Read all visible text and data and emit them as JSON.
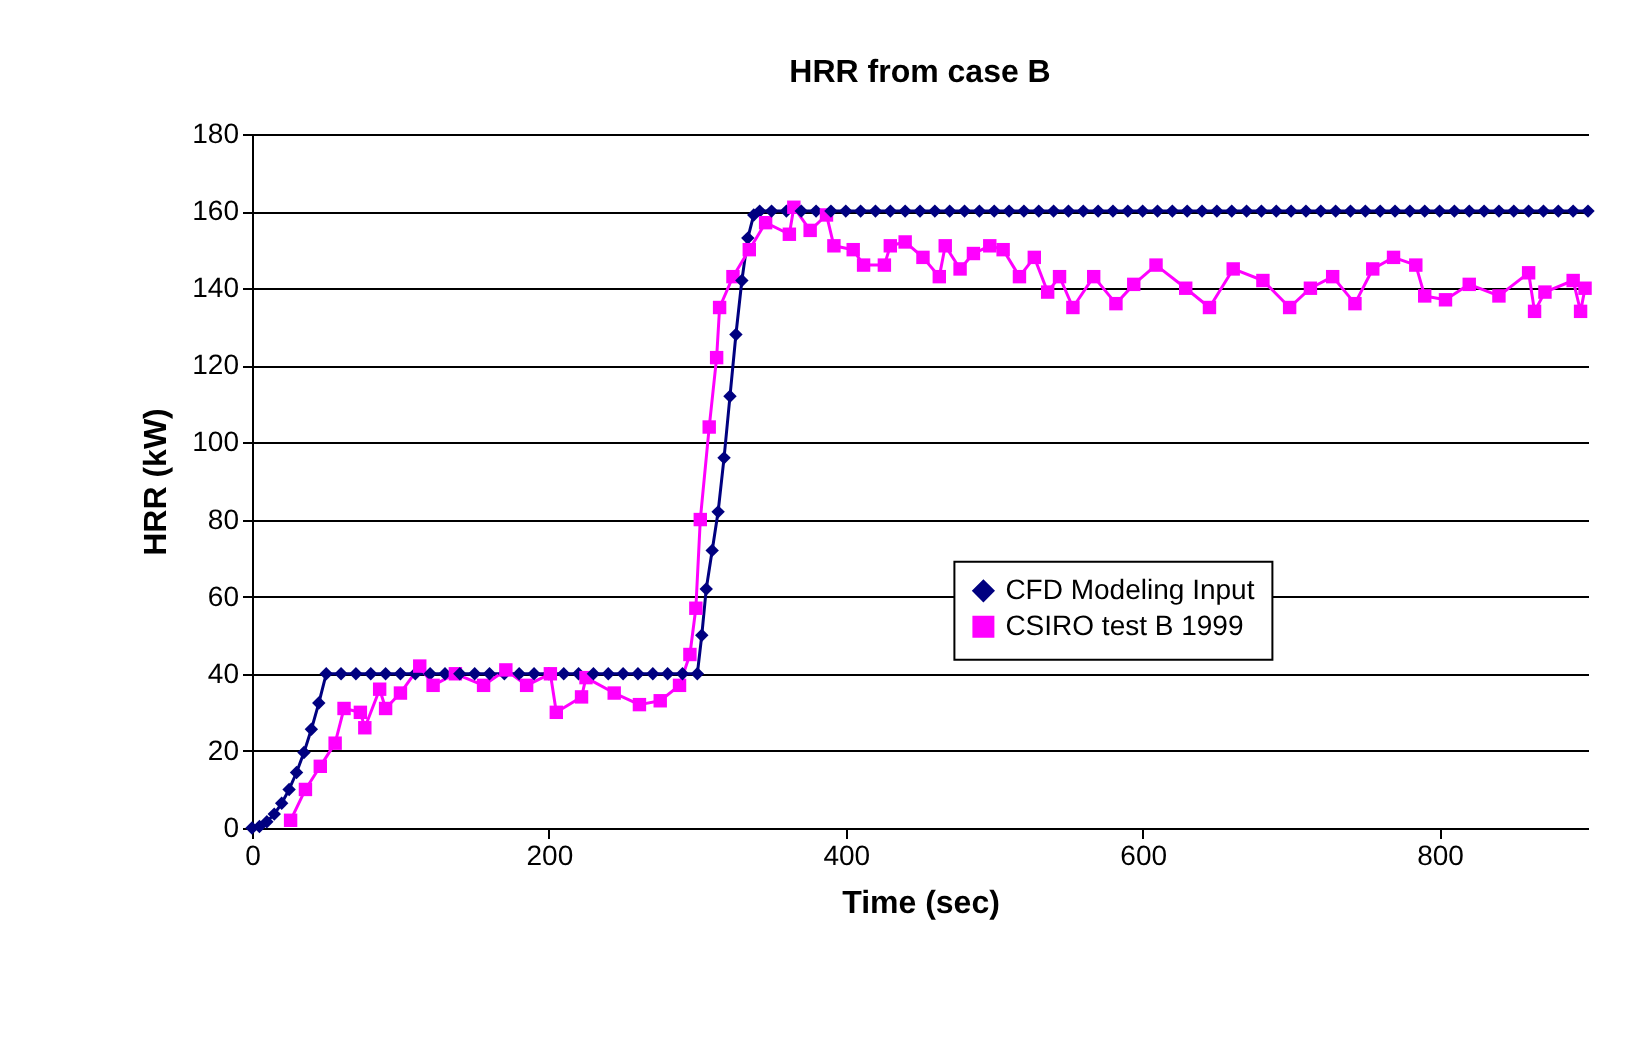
{
  "chart_data": {
    "type": "line",
    "title": "HRR from case B",
    "xlabel": "Time (sec)",
    "ylabel": "HRR (kW)",
    "xlim": [
      0,
      900
    ],
    "xticks": [
      0,
      200,
      400,
      600,
      800
    ],
    "ylim": [
      0,
      180
    ],
    "yticks": [
      0,
      20,
      40,
      60,
      80,
      100,
      120,
      140,
      160,
      180
    ],
    "grid": "y",
    "legend": "right",
    "series": [
      {
        "name": "CFD Modeling Input",
        "color": "#000080",
        "marker": "diamond",
        "x": [
          0,
          5,
          10,
          15,
          20,
          25,
          30,
          35,
          40,
          45,
          50,
          60,
          70,
          80,
          90,
          100,
          110,
          120,
          130,
          140,
          150,
          160,
          170,
          180,
          190,
          200,
          210,
          220,
          230,
          240,
          250,
          260,
          270,
          280,
          290,
          300,
          303,
          306,
          310,
          314,
          318,
          322,
          326,
          330,
          334,
          338,
          342,
          350,
          360,
          370,
          380,
          390,
          400,
          410,
          420,
          430,
          440,
          450,
          460,
          470,
          480,
          490,
          500,
          510,
          520,
          530,
          540,
          550,
          560,
          570,
          580,
          590,
          600,
          610,
          620,
          630,
          640,
          650,
          660,
          670,
          680,
          690,
          700,
          710,
          720,
          730,
          740,
          750,
          760,
          770,
          780,
          790,
          800,
          810,
          820,
          830,
          840,
          850,
          860,
          870,
          880,
          890,
          900
        ],
        "values": [
          0,
          0.4,
          1.6,
          3.6,
          6.4,
          10,
          14.4,
          19.6,
          25.6,
          32.4,
          40,
          40,
          40,
          40,
          40,
          40,
          40,
          40,
          40,
          40,
          40,
          40,
          40,
          40,
          40,
          40,
          40,
          40,
          40,
          40,
          40,
          40,
          40,
          40,
          40,
          40,
          50,
          62,
          72,
          82,
          96,
          112,
          128,
          142,
          153,
          159,
          160,
          160,
          160,
          160,
          160,
          160,
          160,
          160,
          160,
          160,
          160,
          160,
          160,
          160,
          160,
          160,
          160,
          160,
          160,
          160,
          160,
          160,
          160,
          160,
          160,
          160,
          160,
          160,
          160,
          160,
          160,
          160,
          160,
          160,
          160,
          160,
          160,
          160,
          160,
          160,
          160,
          160,
          160,
          160,
          160,
          160,
          160,
          160,
          160,
          160,
          160,
          160,
          160,
          160,
          160,
          160,
          160
        ]
      },
      {
        "name": "CSIRO test B 1999",
        "color": "#ff00ff",
        "marker": "square",
        "x": [
          26,
          36,
          46,
          56,
          62,
          73,
          76,
          86,
          90,
          100,
          113,
          122,
          137,
          156,
          171,
          185,
          201,
          205,
          222,
          225,
          244,
          261,
          275,
          288,
          295,
          299,
          302,
          308,
          313,
          315,
          324,
          335,
          346,
          362,
          365,
          376,
          387,
          392,
          405,
          412,
          426,
          430,
          440,
          452,
          463,
          467,
          477,
          486,
          497,
          506,
          517,
          527,
          536,
          544,
          553,
          567,
          582,
          594,
          609,
          629,
          645,
          661,
          681,
          699,
          713,
          728,
          743,
          755,
          769,
          784,
          790,
          804,
          820,
          840,
          860,
          864,
          871,
          890,
          895,
          898
        ],
        "values": [
          2,
          10,
          16,
          22,
          31,
          30,
          26,
          36,
          31,
          35,
          42,
          37,
          40,
          37,
          41,
          37,
          40,
          30,
          34,
          39,
          35,
          32,
          33,
          37,
          45,
          57,
          80,
          104,
          122,
          135,
          143,
          150,
          157,
          154,
          161,
          155,
          159,
          151,
          150,
          146,
          146,
          151,
          152,
          148,
          143,
          151,
          145,
          149,
          151,
          150,
          143,
          148,
          139,
          143,
          135,
          143,
          136,
          141,
          146,
          140,
          135,
          145,
          142,
          135,
          140,
          143,
          136,
          145,
          148,
          146,
          138,
          137,
          141,
          138,
          144,
          134,
          139,
          142,
          134,
          140
        ]
      }
    ]
  }
}
